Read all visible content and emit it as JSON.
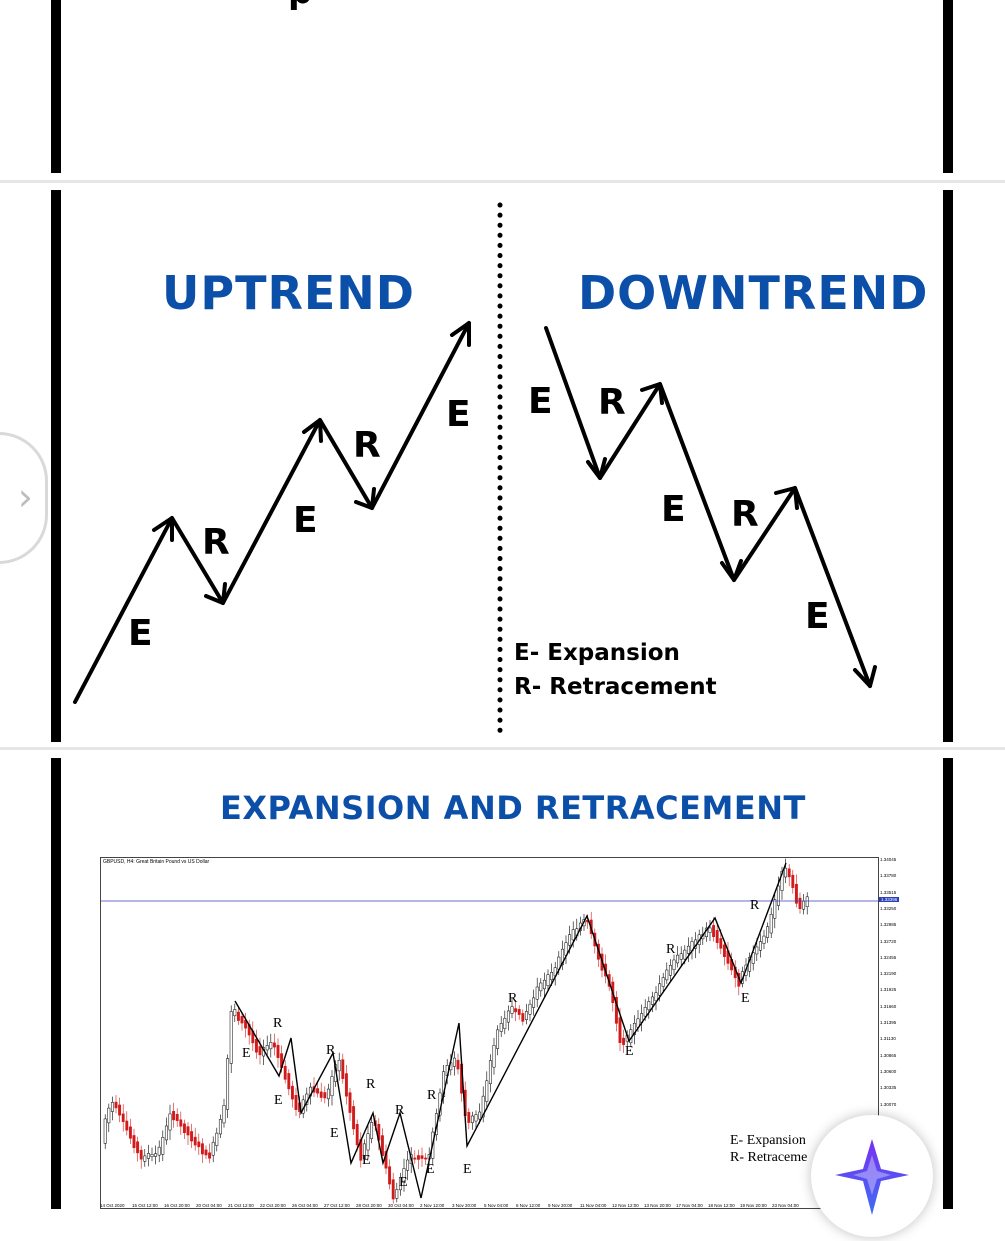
{
  "panel_top": {
    "partial_glyph": "p"
  },
  "panel_trends": {
    "uptrend_title": "UPTREND",
    "downtrend_title": "DOWNTREND",
    "uptrend_labels": [
      "E",
      "R",
      "E",
      "R",
      "E"
    ],
    "downtrend_labels": [
      "E",
      "R",
      "E",
      "R",
      "E"
    ],
    "legend": [
      "E- Expansion",
      "R- Retracement"
    ]
  },
  "panel_chart": {
    "title": "EXPANSION AND RETRACEMENT",
    "chart_header": "GBPUSD, H4: Great Britain Pound vs US Dollar",
    "price_ticks": [
      "1.34045",
      "1.33780",
      "1.33515",
      "1.33250",
      "1.32985",
      "1.32720",
      "1.32455",
      "1.32190",
      "1.31925",
      "1.31660",
      "1.31395",
      "1.31130",
      "1.30865",
      "1.30600",
      "1.30335",
      "1.30070"
    ],
    "current_price": "1.33396",
    "date_ticks": [
      "14 Oct 2020",
      "15 Oct 12:00",
      "16 Oct 20:00",
      "20 Oct 04:00",
      "21 Oct 12:00",
      "22 Oct 20:00",
      "26 Oct 04:00",
      "27 Oct 12:00",
      "28 Oct 20:00",
      "30 Oct 04:00",
      "2 Nov 12:00",
      "3 Nov 20:00",
      "5 Nov 04:00",
      "6 Nov 12:00",
      "9 Nov 20:00",
      "11 Nov 04:00",
      "12 Nov 12:00",
      "13 Nov 20:00",
      "17 Nov 04:00",
      "18 Nov 12:00",
      "19 Nov 20:00",
      "23 Nov 04:00"
    ],
    "annotations": [
      "E",
      "R",
      "E",
      "R",
      "E",
      "R",
      "E",
      "R",
      "E",
      "R",
      "E",
      "R",
      "E",
      "R",
      "E",
      "R",
      "E"
    ],
    "legend": [
      "E- Expansion",
      "R- Retraceme"
    ],
    "colors": {
      "bull": "#000000",
      "bear": "#d11a1a",
      "price_line": "#3a3ac0"
    }
  },
  "overlay": {
    "nav_icon": "chevron-right-icon",
    "badge_icon": "sparkle-logo-icon"
  }
}
